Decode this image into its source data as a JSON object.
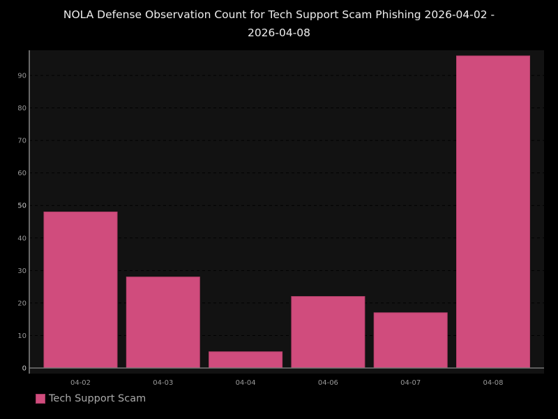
{
  "chart_data": {
    "type": "bar",
    "title": "NOLA Defense Observation Count for Tech Support Scam Phishing 2026-04-02 - 2026-04-08",
    "title_lines": [
      "NOLA Defense Observation Count for Tech Support Scam Phishing 2026-04-02 -",
      "2026-04-08"
    ],
    "categories": [
      "04-02",
      "04-03",
      "04-04",
      "04-06",
      "04-07",
      "04-08"
    ],
    "series": [
      {
        "name": "Tech Support Scam",
        "values": [
          48,
          28,
          5,
          22,
          17,
          96
        ],
        "color": "#d04c7d"
      }
    ],
    "xlabel": "",
    "ylabel": "",
    "ylim": [
      0,
      100
    ],
    "yticks": [
      0,
      10,
      20,
      30,
      40,
      50,
      60,
      70,
      80,
      90
    ],
    "grid": true,
    "legend": "bottom-left",
    "colors": {
      "background": "#000000",
      "plot_background": "#121212",
      "grid": "#000000",
      "axis": "#888888",
      "tick_label": "#999999",
      "title": "#eeeeee"
    }
  }
}
